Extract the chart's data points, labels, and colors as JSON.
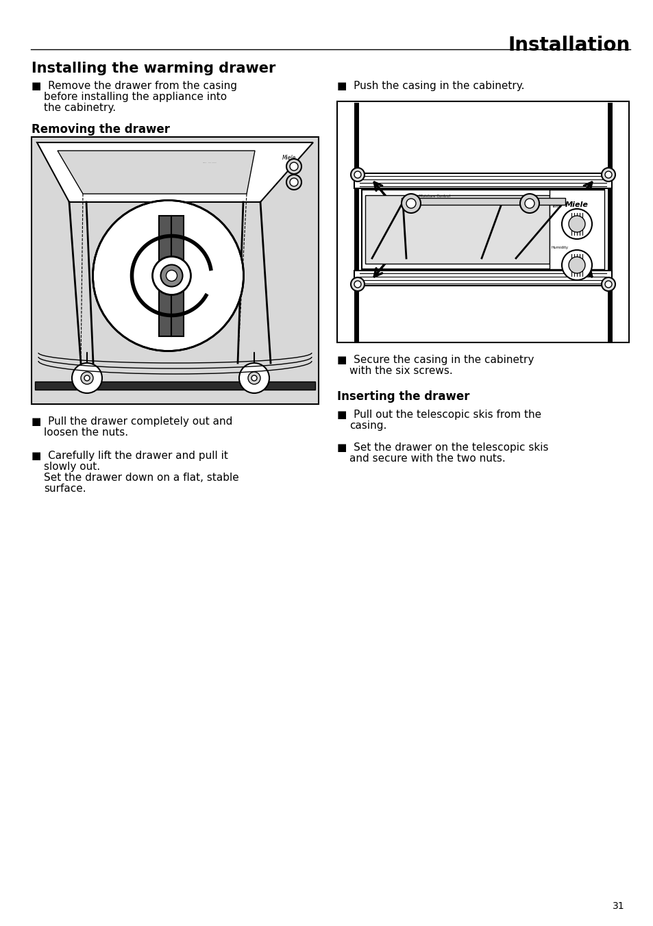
{
  "page_bg": "#ffffff",
  "header_title": "Installation",
  "section_title": "Installing the warming drawer",
  "bullet": "■",
  "texts": {
    "removing_header": "Removing the drawer",
    "inserting_header": "Inserting the drawer"
  },
  "page_number": "31",
  "font_sizes": {
    "header": 20,
    "section_title": 15,
    "subheader": 12,
    "body": 11,
    "page_num": 10
  }
}
